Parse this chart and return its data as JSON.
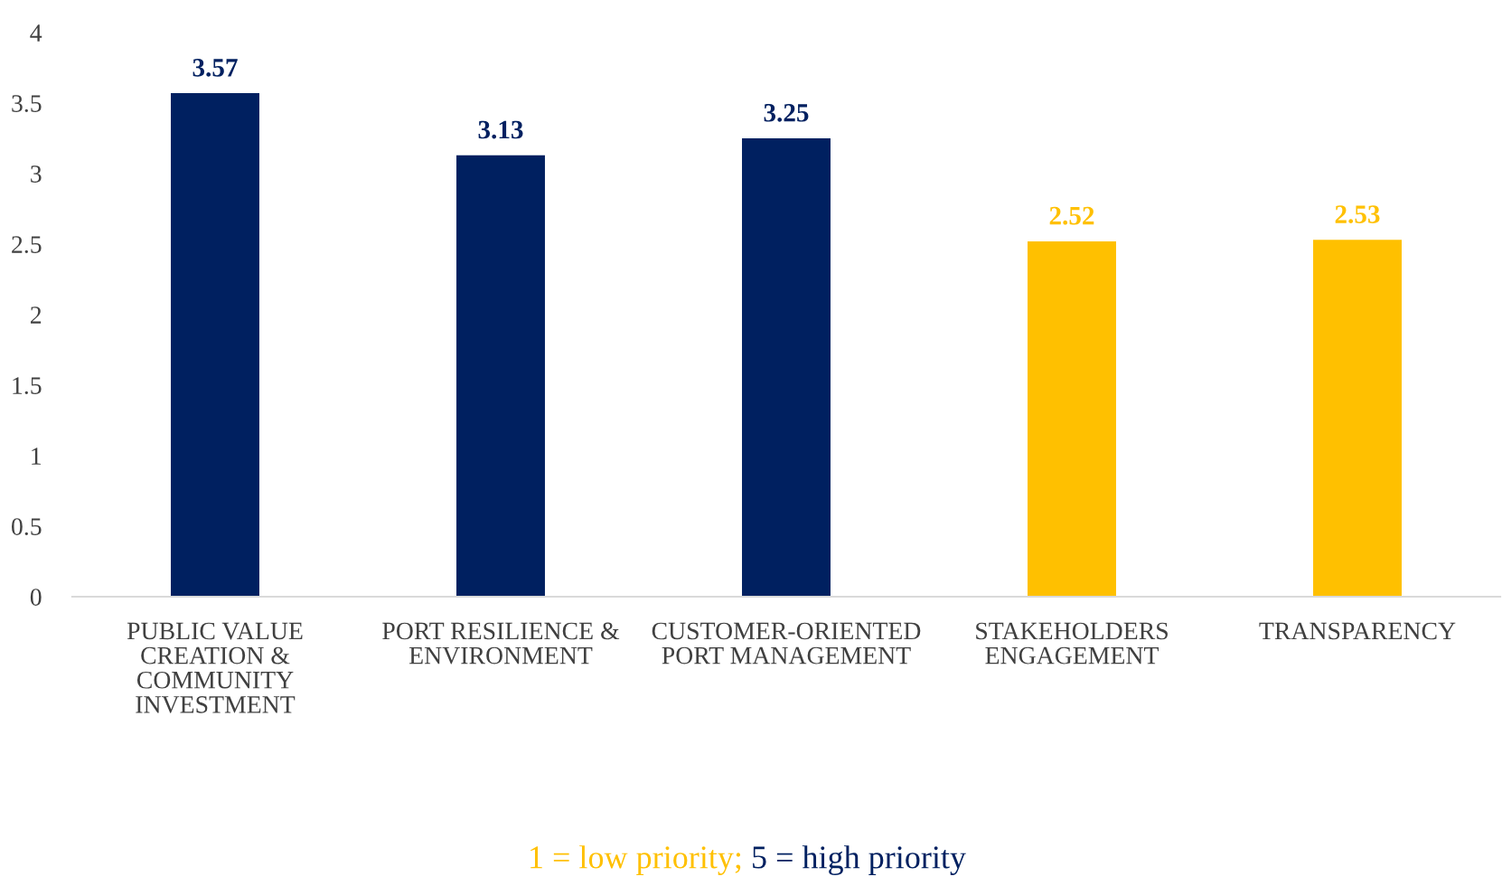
{
  "chart_data": {
    "type": "bar",
    "categories": [
      "PUBLIC VALUE\nCREATION &\nCOMMUNITY\nINVESTMENT",
      "PORT RESILIENCE &\nENVIRONMENT",
      "CUSTOMER-ORIENTED\nPORT MANAGEMENT",
      "STAKEHOLDERS\nENGAGEMENT",
      "TRANSPARENCY"
    ],
    "values": [
      3.57,
      3.13,
      3.25,
      2.52,
      2.53
    ],
    "colors": [
      "#002060",
      "#002060",
      "#002060",
      "#ffc000",
      "#ffc000"
    ],
    "ylim": [
      0,
      4
    ],
    "yticks": [
      0,
      0.5,
      1,
      1.5,
      2,
      2.5,
      3,
      3.5,
      4
    ],
    "data_labels": true,
    "grid": false,
    "legend": false,
    "annotations": [
      "1 = low priority;",
      "5 = high priority"
    ]
  }
}
